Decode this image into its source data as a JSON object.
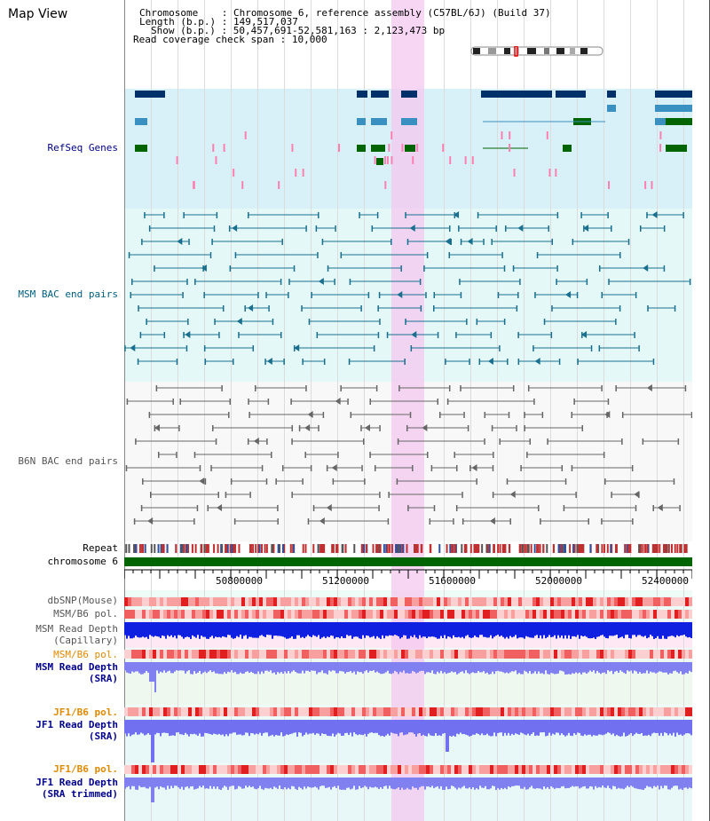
{
  "page_title": "Map View",
  "header": {
    "chromosome_label": "Chromosome",
    "chromosome_value": "Chromosome 6, reference assembly (C57BL/6J) (Build 37)",
    "length_label": "Length (b.p.)",
    "length_value": "149,517,037",
    "show_label": "Show (b.p.)",
    "show_value": "50,457,691-52,581,163 : 2,123,473 bp",
    "coverage_label": "Read coverage check span",
    "coverage_value": "10,000"
  },
  "tracks": {
    "refseq": "RefSeq Genes",
    "msm_bac": "MSM BAC end pairs",
    "b6n_bac": "B6N BAC end pairs",
    "repeat": "Repeat",
    "chromosome": "chromosome 6",
    "dbsnp": "dbSNP(Mouse)",
    "msm_b6_pol_1": "MSM/B6 pol.",
    "msm_depth_cap_1": "MSM Read Depth",
    "msm_depth_cap_2": "(Capillary)",
    "msm_b6_pol_2": "MSM/B6 pol.",
    "msm_depth_sra_1": "MSM Read Depth",
    "msm_depth_sra_2": "(SRA)",
    "jf1_b6_pol_1": "JF1/B6 pol.",
    "jf1_depth_sra_1": "JF1 Read Depth",
    "jf1_depth_sra_2": "(SRA)",
    "jf1_b6_pol_2": "JF1/B6 pol.",
    "jf1_depth_trim_1": "JF1 Read Depth",
    "jf1_depth_trim_2": "(SRA trimmed)"
  },
  "axis_ticks": [
    "50800000",
    "51200000",
    "51600000",
    "52000000",
    "52400000"
  ],
  "colors": {
    "refseq_label": "#00008b",
    "msm_label": "#006080",
    "b6n_label": "#555555",
    "pol_label": "#e08a00",
    "depth_label": "#00008b",
    "chromosome_bar": "#006400",
    "highlight": "#f4c8f0"
  }
}
